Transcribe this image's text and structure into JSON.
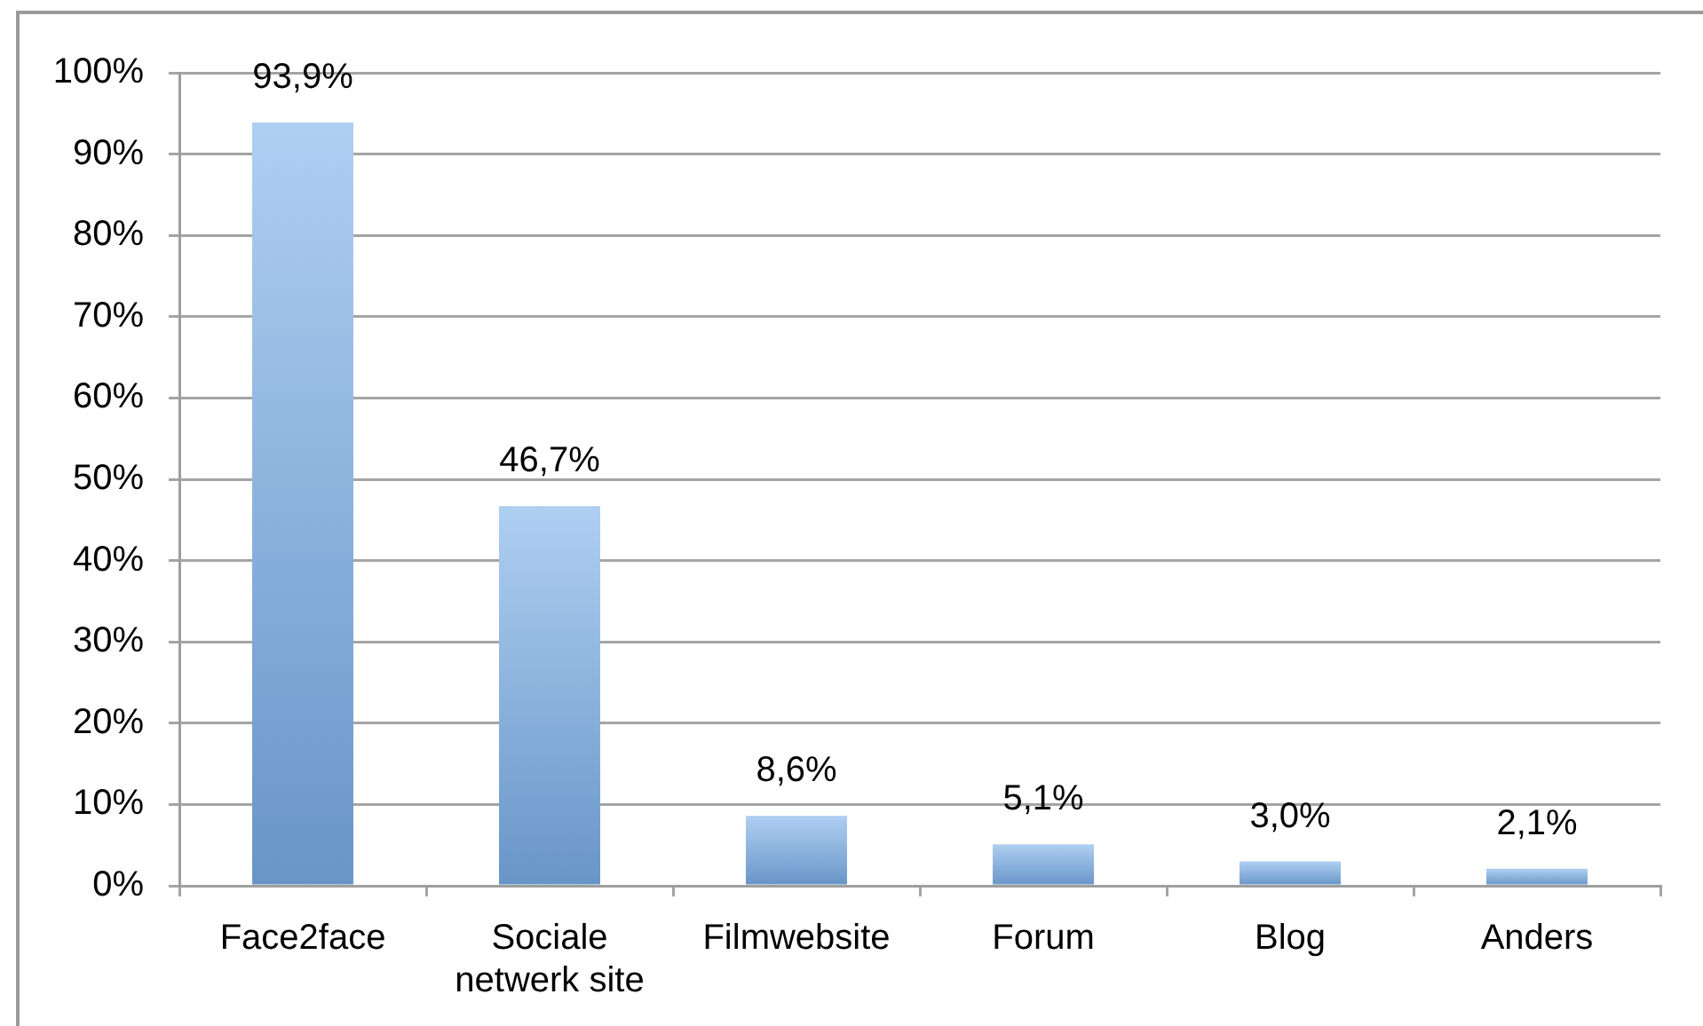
{
  "chart_data": {
    "type": "bar",
    "categories": [
      "Face2face",
      "Sociale netwerk site",
      "Filmwebsite",
      "Forum",
      "Blog",
      "Anders"
    ],
    "values": [
      93.9,
      46.7,
      8.6,
      5.1,
      3.0,
      2.1
    ],
    "value_labels": [
      "93,9%",
      "46,7%",
      "8,6%",
      "5,1%",
      "3,0%",
      "2,1%"
    ],
    "color": "#7aafea",
    "ylim": [
      0,
      100
    ],
    "yticks": [
      {
        "value": 0,
        "label": "0%"
      },
      {
        "value": 10,
        "label": "10%"
      },
      {
        "value": 20,
        "label": "20%"
      },
      {
        "value": 30,
        "label": "30%"
      },
      {
        "value": 40,
        "label": "40%"
      },
      {
        "value": 50,
        "label": "50%"
      },
      {
        "value": 60,
        "label": "60%"
      },
      {
        "value": 70,
        "label": "70%"
      },
      {
        "value": 80,
        "label": "80%"
      },
      {
        "value": 90,
        "label": "90%"
      },
      {
        "value": 100,
        "label": "100%"
      }
    ],
    "grid": "y"
  }
}
